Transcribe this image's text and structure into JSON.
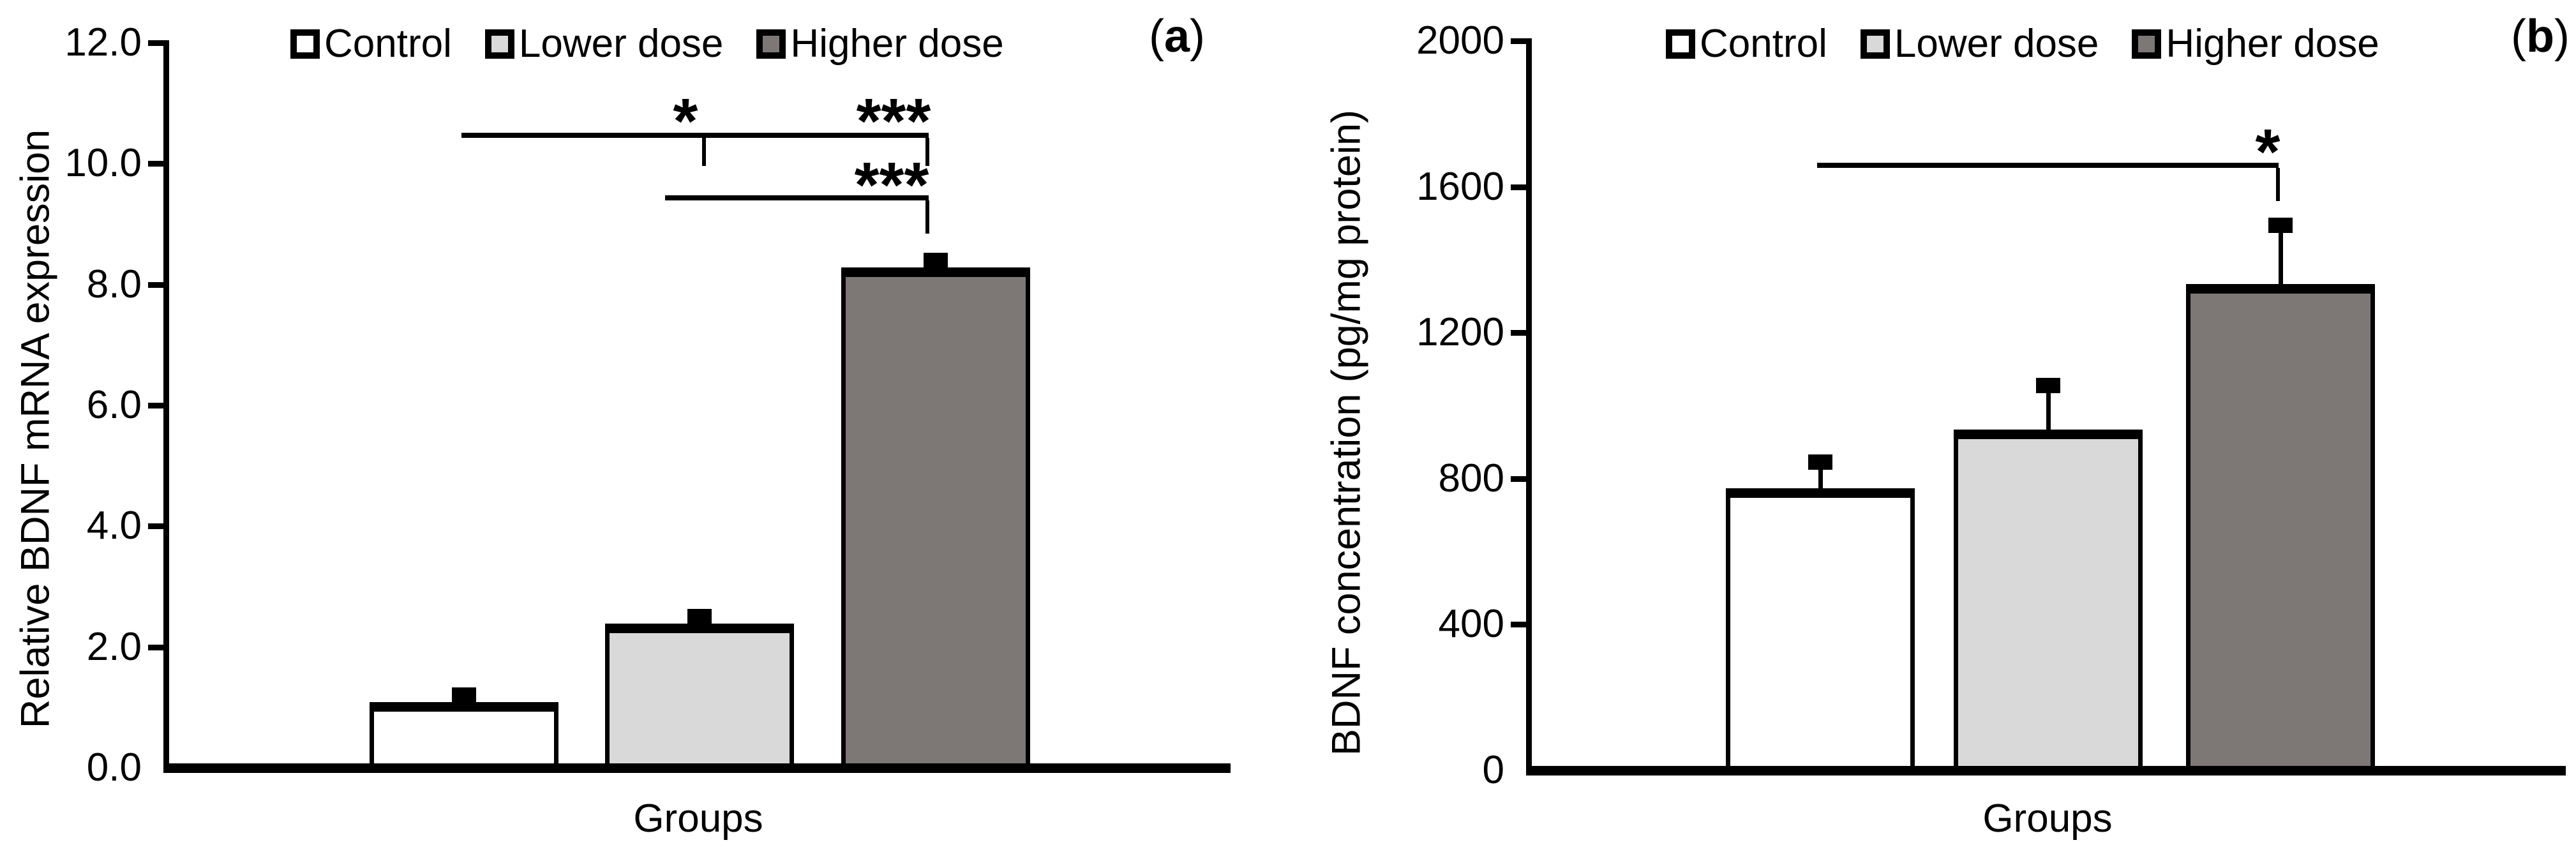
{
  "chart_data": [
    {
      "type": "bar",
      "id": "a",
      "panel_label": {
        "pre": "(",
        "letter": "a",
        "post": ")"
      },
      "title": "",
      "xlabel": "Groups",
      "ylabel": "Relative BDNF mRNA expression",
      "categories": [
        "Control",
        "Lower dose",
        "Higher dose"
      ],
      "values": [
        1.0,
        2.3,
        8.2
      ],
      "error_upper": [
        1.2,
        2.5,
        8.4
      ],
      "bar_fills": [
        "#ffffff",
        "#d9d9d9",
        "#7d7775"
      ],
      "ylim": [
        0,
        12
      ],
      "ytick_labels": [
        "0.0",
        "2.0",
        "4.0",
        "6.0",
        "8.0",
        "10.0",
        "12.0"
      ],
      "ytick_values": [
        0,
        2,
        4,
        6,
        8,
        10,
        12
      ],
      "grid": "off",
      "legend_position": "top",
      "legend": [
        {
          "label": "Control",
          "fill": "#ffffff"
        },
        {
          "label": "Lower dose",
          "fill": "#d9d9d9"
        },
        {
          "label": "Higher dose",
          "fill": "#7d7775"
        }
      ],
      "significance": [
        {
          "compare": [
            "Control",
            "Lower dose"
          ],
          "label": "*"
        },
        {
          "compare": [
            "Control",
            "Higher dose"
          ],
          "label": "***"
        },
        {
          "compare": [
            "Lower dose",
            "Higher dose"
          ],
          "label": "***"
        }
      ]
    },
    {
      "type": "bar",
      "id": "b",
      "panel_label": {
        "pre": "(",
        "letter": "b",
        "post": ")"
      },
      "title": "",
      "xlabel": "Groups",
      "ylabel": "BDNF concentration (pg/mg protein)",
      "categories": [
        "Control",
        "Lower dose",
        "Higher dose"
      ],
      "values": [
        760,
        920,
        1320
      ],
      "error_upper": [
        845,
        1055,
        1495
      ],
      "bar_fills": [
        "#ffffff",
        "#d9d9d9",
        "#7d7775"
      ],
      "ylim": [
        0,
        2000
      ],
      "ytick_labels": [
        "0",
        "400",
        "800",
        "1200",
        "1600",
        "2000"
      ],
      "ytick_values": [
        0,
        400,
        800,
        1200,
        1600,
        2000
      ],
      "grid": "off",
      "legend_position": "top",
      "legend": [
        {
          "label": "Control",
          "fill": "#ffffff"
        },
        {
          "label": "Lower dose",
          "fill": "#d9d9d9"
        },
        {
          "label": "Higher dose",
          "fill": "#7d7775"
        }
      ],
      "significance": [
        {
          "compare": [
            "Control",
            "Higher dose"
          ],
          "label": "*"
        }
      ]
    }
  ]
}
